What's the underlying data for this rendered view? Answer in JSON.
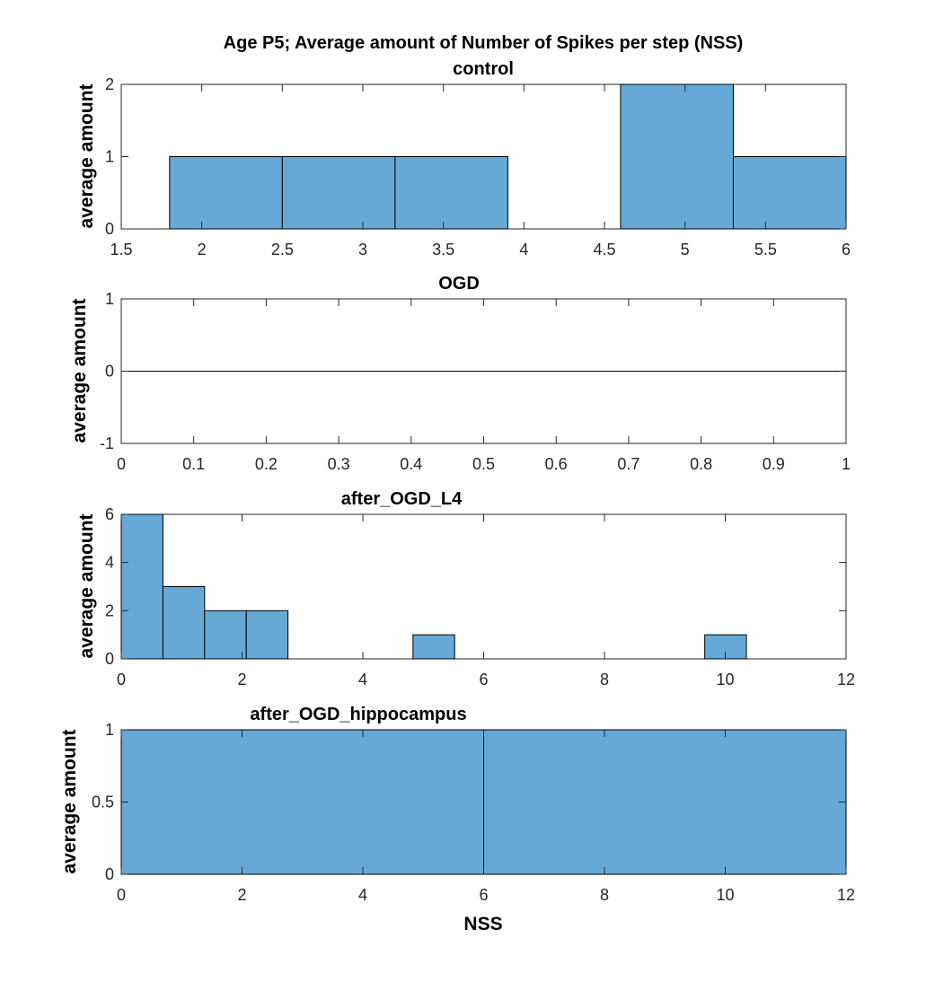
{
  "figure_title": "Age P5; Average amount of Number of Spikes per step (NSS)",
  "chart_data": [
    {
      "type": "bar",
      "title": "control",
      "ylabel": "average amount",
      "xlabel": "",
      "xlim": [
        1.5,
        6
      ],
      "ylim": [
        0,
        2
      ],
      "xticks": [
        "1.5",
        "2",
        "2.5",
        "3",
        "3.5",
        "4",
        "4.5",
        "5",
        "5.5",
        "6"
      ],
      "yticks": [
        "0",
        "1",
        "2"
      ],
      "bins": [
        {
          "x0": 1.8,
          "x1": 2.5,
          "value": 1
        },
        {
          "x0": 2.5,
          "x1": 3.2,
          "value": 1
        },
        {
          "x0": 3.2,
          "x1": 3.9,
          "value": 1
        },
        {
          "x0": 3.9,
          "x1": 4.6,
          "value": 0
        },
        {
          "x0": 4.6,
          "x1": 5.3,
          "value": 2
        },
        {
          "x0": 5.3,
          "x1": 6.0,
          "value": 1
        }
      ]
    },
    {
      "type": "bar",
      "title": "OGD",
      "ylabel": "average amount",
      "xlabel": "",
      "xlim": [
        0,
        1
      ],
      "ylim": [
        -1,
        1
      ],
      "xticks": [
        "0",
        "0.1",
        "0.2",
        "0.3",
        "0.4",
        "0.5",
        "0.6",
        "0.7",
        "0.8",
        "0.9",
        "1"
      ],
      "yticks": [
        "-1",
        "0",
        "1"
      ],
      "bins": [],
      "zero_line": true
    },
    {
      "type": "bar",
      "title": "after_OGD_L4",
      "ylabel": "average amount",
      "xlabel": "",
      "xlim": [
        0,
        12
      ],
      "ylim": [
        0,
        6
      ],
      "xticks": [
        "0",
        "2",
        "4",
        "6",
        "8",
        "10",
        "12"
      ],
      "yticks": [
        "0",
        "2",
        "4",
        "6"
      ],
      "bins": [
        {
          "x0": 0,
          "x1": 0.69,
          "value": 6
        },
        {
          "x0": 0.69,
          "x1": 1.38,
          "value": 3
        },
        {
          "x0": 1.38,
          "x1": 2.07,
          "value": 2
        },
        {
          "x0": 2.07,
          "x1": 2.76,
          "value": 2
        },
        {
          "x0": 4.83,
          "x1": 5.52,
          "value": 1
        },
        {
          "x0": 9.66,
          "x1": 10.35,
          "value": 1
        }
      ]
    },
    {
      "type": "bar",
      "title": "after_OGD_hippocampus",
      "ylabel": "average amount",
      "xlabel": "NSS",
      "xlim": [
        0,
        12
      ],
      "ylim": [
        0,
        1
      ],
      "xticks": [
        "0",
        "2",
        "4",
        "6",
        "8",
        "10",
        "12"
      ],
      "yticks": [
        "0",
        "0.5",
        "1"
      ],
      "bins": [
        {
          "x0": 0,
          "x1": 6,
          "value": 1
        },
        {
          "x0": 6,
          "x1": 12,
          "value": 1
        }
      ]
    }
  ]
}
